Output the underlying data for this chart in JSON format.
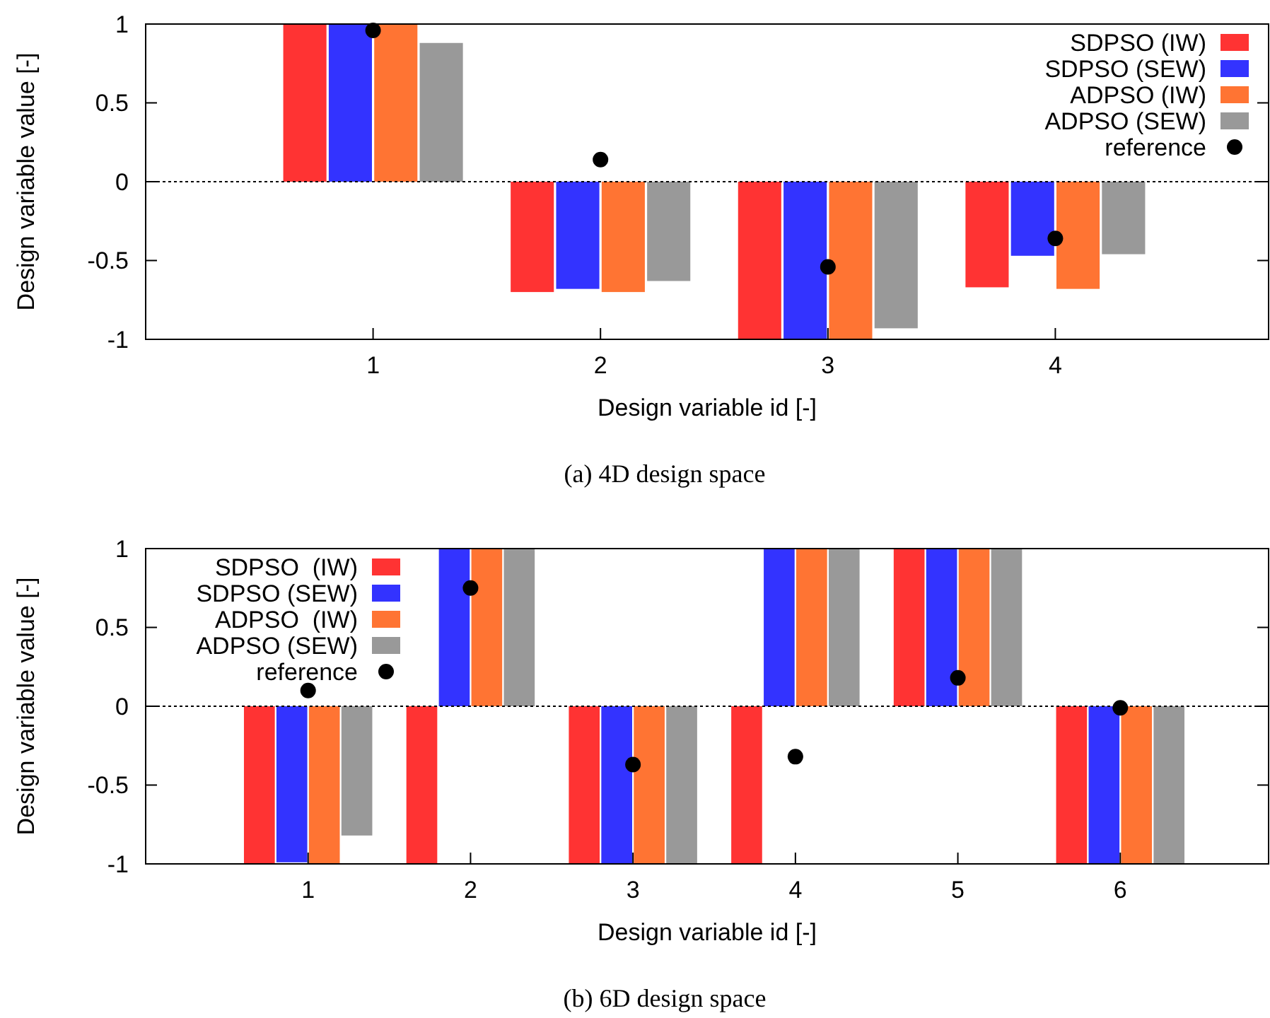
{
  "chart_data": [
    {
      "type": "bar",
      "categories": [
        "1",
        "2",
        "3",
        "4"
      ],
      "xlabel": "Design variable id [-]",
      "ylabel": "Design variable value [-]",
      "ylim": [
        -1,
        1
      ],
      "yticks": [
        -1,
        -0.5,
        0,
        0.5,
        1
      ],
      "legend": "top right",
      "grid": false,
      "annotations": [
        "(a) 4D design space"
      ],
      "ref_lines": [
        {
          "axis": "y",
          "value": 0,
          "line_style": "dotted",
          "color": "#000000"
        }
      ],
      "series": [
        {
          "name": "SDPSO (IW)",
          "color": "#ff3333",
          "values": [
            1,
            -0.7,
            -1,
            -0.67
          ]
        },
        {
          "name": "SDPSO (SEW)",
          "color": "#3333ff",
          "values": [
            1,
            -0.68,
            -1,
            -0.47
          ]
        },
        {
          "name": "ADPSO (IW)",
          "color": "#ff7433",
          "values": [
            1,
            -0.7,
            -1,
            -0.68
          ]
        },
        {
          "name": "ADPSO (SEW)",
          "color": "#999999",
          "values": [
            0.88,
            -0.63,
            -0.93,
            -0.46
          ]
        },
        {
          "name": "reference",
          "type": "scatter",
          "marker": "circle",
          "color": "#000000",
          "x": [
            "1",
            "2",
            "3",
            "4"
          ],
          "values": [
            0.96,
            0.14,
            -0.54,
            -0.36
          ]
        }
      ]
    },
    {
      "type": "bar",
      "categories": [
        "1",
        "2",
        "3",
        "4",
        "5",
        "6"
      ],
      "xlabel": "Design variable id [-]",
      "ylabel": "Design variable value [-]",
      "ylim": [
        -1,
        1
      ],
      "yticks": [
        -1,
        -0.5,
        0,
        0.5,
        1
      ],
      "legend": "top left",
      "grid": false,
      "annotations": [
        "(b) 6D design space"
      ],
      "ref_lines": [
        {
          "axis": "y",
          "value": 0,
          "line_style": "dotted",
          "color": "#000000"
        }
      ],
      "series": [
        {
          "name": "SDPSO  (IW)",
          "color": "#ff3333",
          "values": [
            -1,
            -1,
            -1,
            -1,
            1,
            -1
          ]
        },
        {
          "name": "SDPSO (SEW)",
          "color": "#3333ff",
          "values": [
            -0.99,
            1,
            -1,
            1,
            1,
            -1
          ]
        },
        {
          "name": "ADPSO  (IW)",
          "color": "#ff7433",
          "values": [
            -1,
            1,
            -1,
            1,
            1,
            -1
          ]
        },
        {
          "name": "ADPSO (SEW)",
          "color": "#999999",
          "values": [
            -0.82,
            1,
            -1,
            1,
            1,
            -1
          ]
        },
        {
          "name": "reference",
          "type": "scatter",
          "marker": "circle",
          "color": "#000000",
          "x": [
            "1",
            "2",
            "3",
            "4",
            "5",
            "6"
          ],
          "values": [
            0.1,
            0.75,
            -0.37,
            -0.32,
            0.18,
            -0.01
          ]
        }
      ]
    }
  ]
}
